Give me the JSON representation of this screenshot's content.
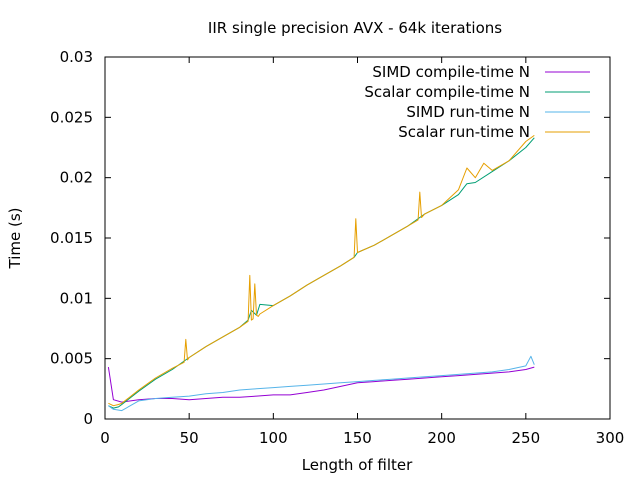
{
  "chart_data": {
    "type": "line",
    "title": "IIR single precision AVX - 64k iterations",
    "xlabel": "Length of filter",
    "ylabel": "Time (s)",
    "xlim": [
      0,
      300
    ],
    "ylim": [
      0,
      0.03
    ],
    "xticks": [
      0,
      50,
      100,
      150,
      200,
      250,
      300
    ],
    "xtick_labels": [
      "0",
      "50",
      "100",
      "150",
      "200",
      "250",
      "300"
    ],
    "yticks": [
      0,
      0.005,
      0.01,
      0.015,
      0.02,
      0.025,
      0.03
    ],
    "ytick_labels": [
      "0",
      "0.005",
      "0.01",
      "0.015",
      "0.02",
      "0.025",
      "0.03"
    ],
    "grid": false,
    "legend_position": "top-right",
    "series": [
      {
        "name": "SIMD compile-time N",
        "color": "#9400d3",
        "x": [
          2,
          5,
          10,
          20,
          30,
          40,
          50,
          60,
          70,
          80,
          90,
          100,
          110,
          120,
          130,
          140,
          150,
          160,
          170,
          180,
          190,
          200,
          210,
          220,
          230,
          240,
          250,
          255
        ],
        "y": [
          0.0043,
          0.0016,
          0.0014,
          0.0016,
          0.0017,
          0.0017,
          0.0016,
          0.0017,
          0.0018,
          0.0018,
          0.0019,
          0.002,
          0.002,
          0.0022,
          0.0024,
          0.0027,
          0.003,
          0.0031,
          0.0032,
          0.0033,
          0.0034,
          0.0035,
          0.0036,
          0.0037,
          0.0038,
          0.0039,
          0.0041,
          0.0043
        ]
      },
      {
        "name": "Scalar compile-time N",
        "color": "#009e73",
        "x": [
          2,
          5,
          8,
          10,
          20,
          30,
          40,
          48,
          50,
          60,
          70,
          80,
          85,
          87,
          90,
          92,
          100,
          110,
          120,
          130,
          140,
          148,
          150,
          160,
          170,
          180,
          187,
          190,
          200,
          210,
          215,
          220,
          230,
          240,
          250,
          255
        ],
        "y": [
          0.0011,
          0.0009,
          0.001,
          0.0012,
          0.0023,
          0.0033,
          0.0041,
          0.0049,
          0.0051,
          0.006,
          0.0068,
          0.0076,
          0.0082,
          0.009,
          0.0086,
          0.0095,
          0.0094,
          0.0102,
          0.0111,
          0.0119,
          0.0127,
          0.0134,
          0.0138,
          0.0144,
          0.0152,
          0.016,
          0.0167,
          0.017,
          0.0177,
          0.0186,
          0.0195,
          0.0196,
          0.0205,
          0.0214,
          0.0225,
          0.0233
        ]
      },
      {
        "name": "SIMD run-time N",
        "color": "#56b4e9",
        "x": [
          2,
          5,
          10,
          15,
          20,
          30,
          40,
          50,
          60,
          70,
          80,
          90,
          100,
          110,
          120,
          130,
          140,
          150,
          160,
          170,
          180,
          190,
          200,
          210,
          220,
          230,
          240,
          250,
          253,
          255
        ],
        "y": [
          0.0011,
          0.0008,
          0.0007,
          0.0011,
          0.0015,
          0.0017,
          0.0018,
          0.0019,
          0.0021,
          0.0022,
          0.0024,
          0.0025,
          0.0026,
          0.0027,
          0.0028,
          0.0029,
          0.003,
          0.0031,
          0.0032,
          0.0033,
          0.0034,
          0.0035,
          0.0036,
          0.0037,
          0.0038,
          0.0039,
          0.0041,
          0.0044,
          0.0052,
          0.0045
        ]
      },
      {
        "name": "Scalar run-time N",
        "color": "#e69f00",
        "x": [
          2,
          5,
          8,
          10,
          20,
          30,
          40,
          47,
          48,
          49,
          50,
          60,
          70,
          80,
          85,
          86,
          87,
          88,
          89,
          90,
          91,
          92,
          100,
          110,
          120,
          130,
          140,
          148,
          149,
          150,
          160,
          170,
          180,
          186,
          187,
          188,
          190,
          200,
          210,
          215,
          220,
          225,
          230,
          240,
          250,
          255
        ],
        "y": [
          0.0013,
          0.0011,
          0.0012,
          0.0013,
          0.0024,
          0.0034,
          0.0042,
          0.0047,
          0.0066,
          0.0049,
          0.0051,
          0.006,
          0.0068,
          0.0076,
          0.0081,
          0.0119,
          0.0082,
          0.0083,
          0.0112,
          0.0086,
          0.0085,
          0.0087,
          0.0094,
          0.0102,
          0.0111,
          0.0119,
          0.0127,
          0.0134,
          0.0166,
          0.0138,
          0.0144,
          0.0152,
          0.016,
          0.0165,
          0.0188,
          0.0167,
          0.017,
          0.0177,
          0.019,
          0.0208,
          0.02,
          0.0212,
          0.0206,
          0.0214,
          0.023,
          0.0235
        ]
      }
    ]
  }
}
